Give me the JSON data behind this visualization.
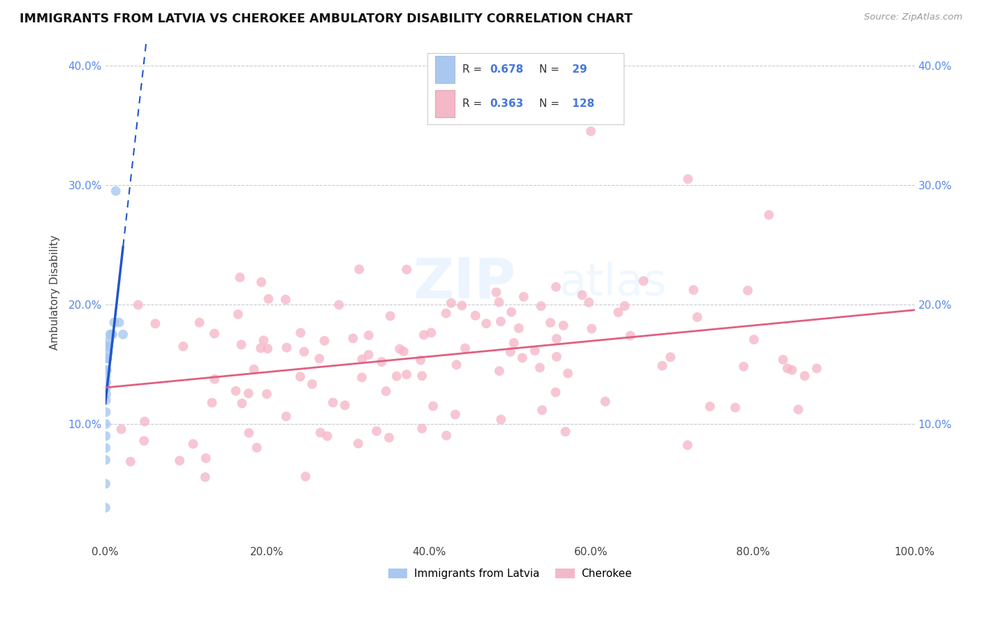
{
  "title": "IMMIGRANTS FROM LATVIA VS CHEROKEE AMBULATORY DISABILITY CORRELATION CHART",
  "source": "Source: ZipAtlas.com",
  "ylabel": "Ambulatory Disability",
  "watermark_part1": "ZIP",
  "watermark_part2": "atlas",
  "legend_labels": [
    "Immigrants from Latvia",
    "Cherokee"
  ],
  "R_latvia": 0.678,
  "N_latvia": 29,
  "R_cherokee": 0.363,
  "N_cherokee": 128,
  "color_latvia": "#A8C8F0",
  "color_cherokee": "#F5B8C8",
  "trendline_latvia": "#2255CC",
  "trendline_cherokee": "#E06080",
  "xlim": [
    0,
    1
  ],
  "ylim": [
    0,
    0.42
  ],
  "x_tick_labels": [
    "0.0%",
    "20.0%",
    "40.0%",
    "60.0%",
    "80.0%",
    "100.0%"
  ],
  "x_tick_values": [
    0,
    0.2,
    0.4,
    0.6,
    0.8,
    1.0
  ],
  "y_tick_labels": [
    "10.0%",
    "20.0%",
    "30.0%",
    "40.0%"
  ],
  "y_tick_values": [
    0.1,
    0.2,
    0.3,
    0.4
  ]
}
